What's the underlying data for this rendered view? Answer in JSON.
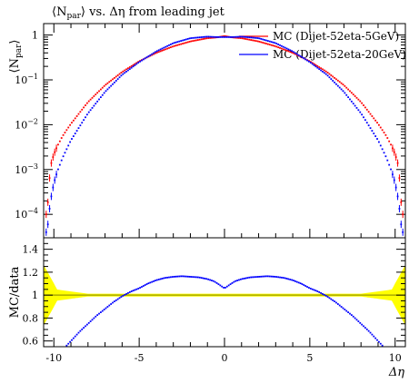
{
  "chart_data": [
    {
      "type": "scatter",
      "title": "⟨N_par⟩ vs. Δη from leading jet",
      "title_parts": {
        "prefix": "⟨N",
        "sub": "par",
        "suffix": "⟩ vs. Δη from leading jet"
      },
      "ylabel_parts": {
        "prefix": "⟨N",
        "sub": "par",
        "suffix": "⟩"
      },
      "yscale": "log",
      "xlim": [
        -10.6,
        10.6
      ],
      "ylim": [
        3e-05,
        1.8
      ],
      "ytick_labels": [
        {
          "v": 1,
          "label": "1",
          "sup": ""
        },
        {
          "v": 0.1,
          "label": "10",
          "sup": "−1"
        },
        {
          "v": 0.01,
          "label": "10",
          "sup": "−2"
        },
        {
          "v": 0.001,
          "label": "10",
          "sup": "−3"
        },
        {
          "v": 0.0001,
          "label": "10",
          "sup": "−4"
        }
      ],
      "legend_position": "top-right",
      "series": [
        {
          "name": "MC (Dijet-52eta-5GeV)",
          "color": "#ff0000",
          "x": [
            0,
            0.5,
            1.0,
            2.0,
            3.0,
            4.0,
            5.0,
            6.0,
            7.0,
            8.0,
            9.0,
            9.5,
            9.8,
            10.0,
            10.2,
            10.4
          ],
          "y": [
            0.95,
            0.88,
            0.85,
            0.72,
            0.56,
            0.4,
            0.26,
            0.15,
            0.076,
            0.032,
            0.0105,
            0.0055,
            0.0033,
            0.0022,
            0.0012,
            0.0001
          ]
        },
        {
          "name": "MC (Dijet-52eta-20GeV)",
          "color": "#0000ff",
          "x": [
            0,
            0.5,
            1.0,
            2.0,
            3.0,
            4.0,
            5.0,
            6.0,
            7.0,
            8.0,
            9.0,
            9.5,
            9.8,
            10.0,
            10.2,
            10.4
          ],
          "y": [
            0.9,
            0.9,
            0.92,
            0.85,
            0.66,
            0.43,
            0.25,
            0.13,
            0.054,
            0.018,
            0.0045,
            0.0018,
            0.0009,
            0.0005,
            0.0002,
            4e-05
          ]
        }
      ]
    },
    {
      "type": "scatter",
      "ylabel": "MC/data",
      "xlabel": "Δη",
      "xlim": [
        -10.6,
        10.6
      ],
      "ylim": [
        0.55,
        1.5
      ],
      "yticks": [
        0.6,
        0.8,
        1,
        1.2,
        1.4
      ],
      "ytick_labels": [
        "0.6",
        "0.8",
        "1",
        "1.2",
        "1.4"
      ],
      "xticks": [
        -10,
        -5,
        0,
        5,
        10
      ],
      "xtick_labels": [
        "-10",
        "-5",
        "0",
        "5",
        "10"
      ],
      "reference_band": {
        "color": "#ffff00",
        "line_color": "#999900",
        "value": 1
      },
      "series": [
        {
          "name": "MC (Dijet-52eta-20GeV)",
          "color": "#0000ff",
          "x": [
            0,
            0.3,
            0.6,
            1.0,
            1.5,
            2.0,
            2.5,
            3.0,
            3.5,
            4.0,
            4.5,
            5.0,
            5.5,
            6.0,
            6.5,
            7.0,
            7.5,
            8.0,
            8.5,
            9.0,
            9.5
          ],
          "y": [
            1.06,
            1.09,
            1.12,
            1.14,
            1.155,
            1.16,
            1.165,
            1.16,
            1.15,
            1.13,
            1.1,
            1.06,
            1.03,
            0.99,
            0.94,
            0.88,
            0.82,
            0.75,
            0.68,
            0.6,
            0.52
          ]
        }
      ]
    }
  ]
}
